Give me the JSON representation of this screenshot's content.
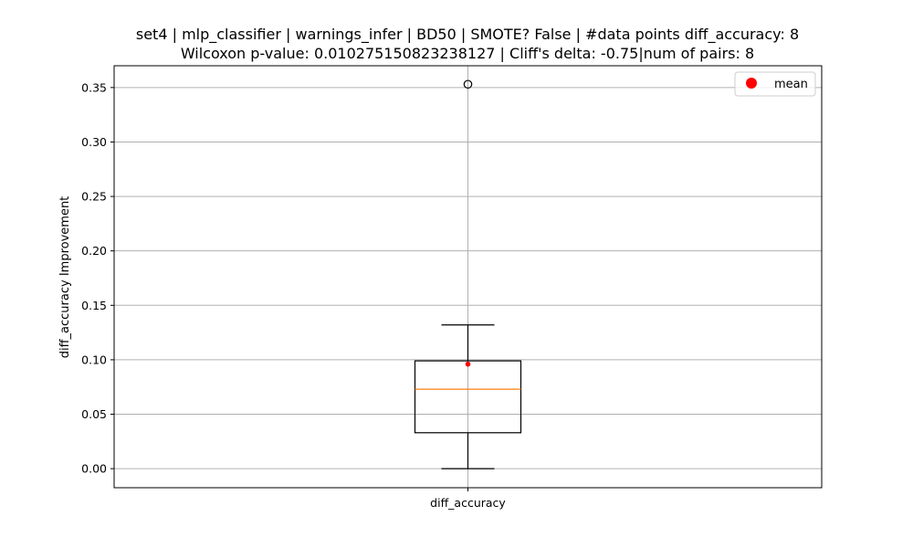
{
  "chart_data": {
    "type": "box",
    "title": "set4 | mlp_classifier | warnings_infer | BD50 | SMOTE? False | #data points diff_accuracy: 8",
    "subtitle": "Wilcoxon p-value: 0.010275150823238127 | Cliff's delta: -0.75|num of pairs: 8",
    "xlabel": "",
    "ylabel": "diff_accuracy Improvement",
    "categories": [
      "diff_accuracy"
    ],
    "ylim": [
      -0.0175,
      0.37
    ],
    "yticks": [
      0.0,
      0.05,
      0.1,
      0.15,
      0.2,
      0.25,
      0.3,
      0.35
    ],
    "ytick_labels": [
      "0.00",
      "0.05",
      "0.10",
      "0.15",
      "0.20",
      "0.25",
      "0.30",
      "0.35"
    ],
    "grid": true,
    "legend": {
      "placement": "top-right",
      "entries": [
        {
          "label": "mean",
          "color": "#ff0000",
          "marker": "circle"
        }
      ]
    },
    "box": {
      "whisker_low": 0.0,
      "q1": 0.033,
      "median": 0.073,
      "q3": 0.099,
      "whisker_high": 0.132,
      "mean": 0.096,
      "outliers": [
        0.353
      ]
    },
    "colors": {
      "median": "#ff7f0e",
      "mean": "#ff0000",
      "box": "#000000",
      "grid": "#b0b0b0"
    }
  }
}
